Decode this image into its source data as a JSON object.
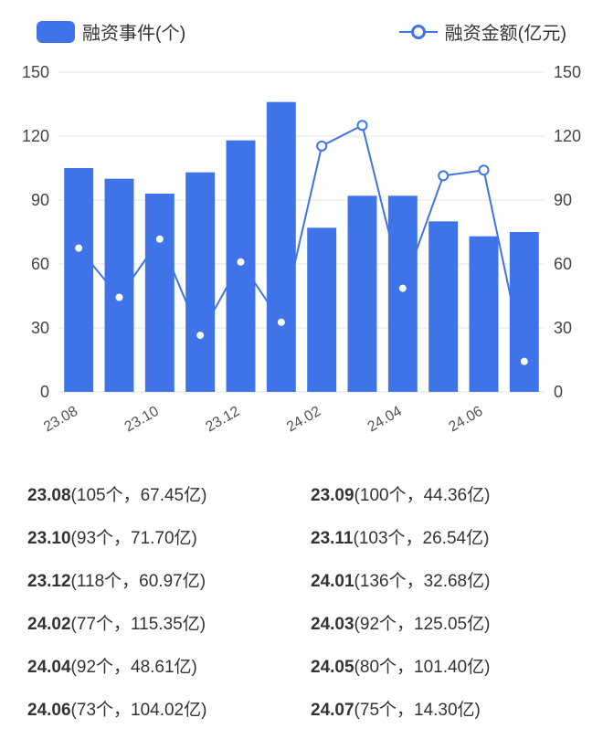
{
  "legend": {
    "bar_label": "融资事件(个)",
    "line_label": "融资金额(亿元)"
  },
  "chart": {
    "type": "bar+line",
    "background_color": "#ffffff",
    "grid_color": "#e6e6e6",
    "axis_text_color": "#444444",
    "cat_text_color": "#555555",
    "bar_color": "#3e74e8",
    "line_color": "#3e74e8",
    "marker_fill": "#ffffff",
    "marker_stroke": "#3e74e8",
    "marker_radius": 5,
    "line_width": 2,
    "categories": [
      "23.08",
      "23.09",
      "23.10",
      "23.11",
      "23.12",
      "24.01",
      "24.02",
      "24.03",
      "24.04",
      "24.05",
      "24.06",
      "24.07"
    ],
    "x_tick_labels": [
      "23.08",
      "23.10",
      "23.12",
      "24.02",
      "24.04",
      "24.06"
    ],
    "bar_values": [
      105,
      100,
      93,
      103,
      118,
      136,
      77,
      92,
      92,
      80,
      73,
      75
    ],
    "line_values": [
      67.45,
      44.36,
      71.7,
      26.54,
      60.97,
      32.68,
      115.35,
      125.05,
      48.61,
      101.4,
      104.02,
      14.3
    ],
    "y_left": {
      "min": 0,
      "max": 150,
      "step": 30
    },
    "y_right": {
      "min": 0,
      "max": 150,
      "step": 30
    },
    "bar_width_ratio": 0.72,
    "label_fontsize": 18,
    "tick_fontsize_x": 16
  },
  "table": {
    "rows": [
      {
        "period": "23.08",
        "count": "105个",
        "amount": "67.45亿"
      },
      {
        "period": "23.09",
        "count": "100个",
        "amount": "44.36亿"
      },
      {
        "period": "23.10",
        "count": "93个",
        "amount": "71.70亿"
      },
      {
        "period": "23.11",
        "count": "103个",
        "amount": "26.54亿"
      },
      {
        "period": "23.12",
        "count": "118个",
        "amount": "60.97亿"
      },
      {
        "period": "24.01",
        "count": "136个",
        "amount": "32.68亿"
      },
      {
        "period": "24.02",
        "count": "77个",
        "amount": "115.35亿"
      },
      {
        "period": "24.03",
        "count": "92个",
        "amount": "125.05亿"
      },
      {
        "period": "24.04",
        "count": "92个",
        "amount": "48.61亿"
      },
      {
        "period": "24.05",
        "count": "80个",
        "amount": "101.40亿"
      },
      {
        "period": "24.06",
        "count": "73个",
        "amount": "104.02亿"
      },
      {
        "period": "24.07",
        "count": "75个",
        "amount": "14.30亿"
      }
    ]
  }
}
